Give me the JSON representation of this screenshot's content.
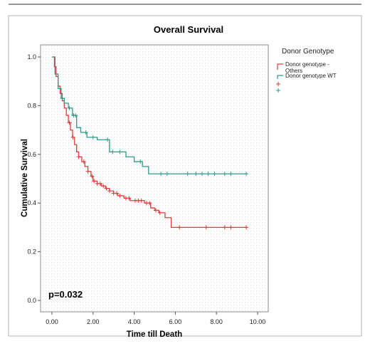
{
  "chart_data": {
    "type": "line",
    "step": true,
    "title": "Overall Survival",
    "xlabel": "Time till Death",
    "ylabel": "Cumulative Survival",
    "xlim": [
      0,
      10
    ],
    "ylim": [
      0,
      1.05
    ],
    "xticks": [
      "0.00",
      "2.00",
      "4.00",
      "6.00",
      "8.00",
      "10.00"
    ],
    "yticks": [
      "0.0",
      "0.2",
      "0.4",
      "0.6",
      "0.8",
      "1.0"
    ],
    "grid": "dotted",
    "annotation": "p=0.032",
    "legend": {
      "title": "Donor Genotype",
      "placement": "right",
      "entries": [
        "Donor genotype -\nOthers",
        "Donor genotype WT"
      ]
    },
    "series": [
      {
        "name": "Donor genotype -\nOthers",
        "color": "#e03c3c",
        "x": [
          0,
          0.12,
          0.2,
          0.3,
          0.4,
          0.5,
          0.6,
          0.7,
          0.8,
          0.9,
          1.0,
          1.1,
          1.2,
          1.3,
          1.45,
          1.6,
          1.75,
          1.9,
          2.0,
          2.2,
          2.4,
          2.6,
          2.8,
          3.0,
          3.2,
          3.5,
          3.8,
          4.2,
          4.5,
          4.8,
          5.0,
          5.2,
          5.5,
          5.8,
          9.45
        ],
        "y": [
          1.0,
          0.96,
          0.92,
          0.88,
          0.85,
          0.82,
          0.79,
          0.76,
          0.73,
          0.7,
          0.67,
          0.64,
          0.61,
          0.59,
          0.57,
          0.55,
          0.53,
          0.51,
          0.49,
          0.48,
          0.47,
          0.46,
          0.45,
          0.44,
          0.43,
          0.42,
          0.41,
          0.41,
          0.4,
          0.38,
          0.37,
          0.36,
          0.34,
          0.3,
          0.3
        ],
        "censored": [
          0.85,
          1.02,
          1.3,
          1.55,
          1.75,
          1.95,
          2.05,
          2.2,
          2.35,
          2.5,
          2.65,
          2.8,
          3.0,
          3.15,
          3.3,
          3.6,
          3.75,
          4.05,
          4.2,
          4.35,
          4.6,
          4.75,
          5.05,
          5.25,
          6.2,
          7.5,
          8.4,
          8.7,
          9.45
        ]
      },
      {
        "name": "Donor genotype WT",
        "color": "#2e9a86",
        "x": [
          0,
          0.15,
          0.3,
          0.45,
          0.6,
          0.8,
          1.0,
          1.2,
          1.4,
          1.7,
          2.2,
          2.8,
          3.6,
          4.0,
          4.4,
          4.7,
          9.45
        ],
        "y": [
          1.0,
          0.93,
          0.87,
          0.83,
          0.81,
          0.79,
          0.76,
          0.71,
          0.69,
          0.67,
          0.66,
          0.61,
          0.59,
          0.57,
          0.55,
          0.52,
          0.52
        ],
        "censored": [
          0.5,
          0.85,
          1.05,
          1.15,
          1.65,
          2.0,
          2.7,
          2.95,
          3.3,
          4.3,
          5.3,
          5.6,
          6.6,
          7.0,
          7.3,
          7.6,
          7.9,
          8.4,
          8.7,
          9.45
        ]
      }
    ]
  }
}
